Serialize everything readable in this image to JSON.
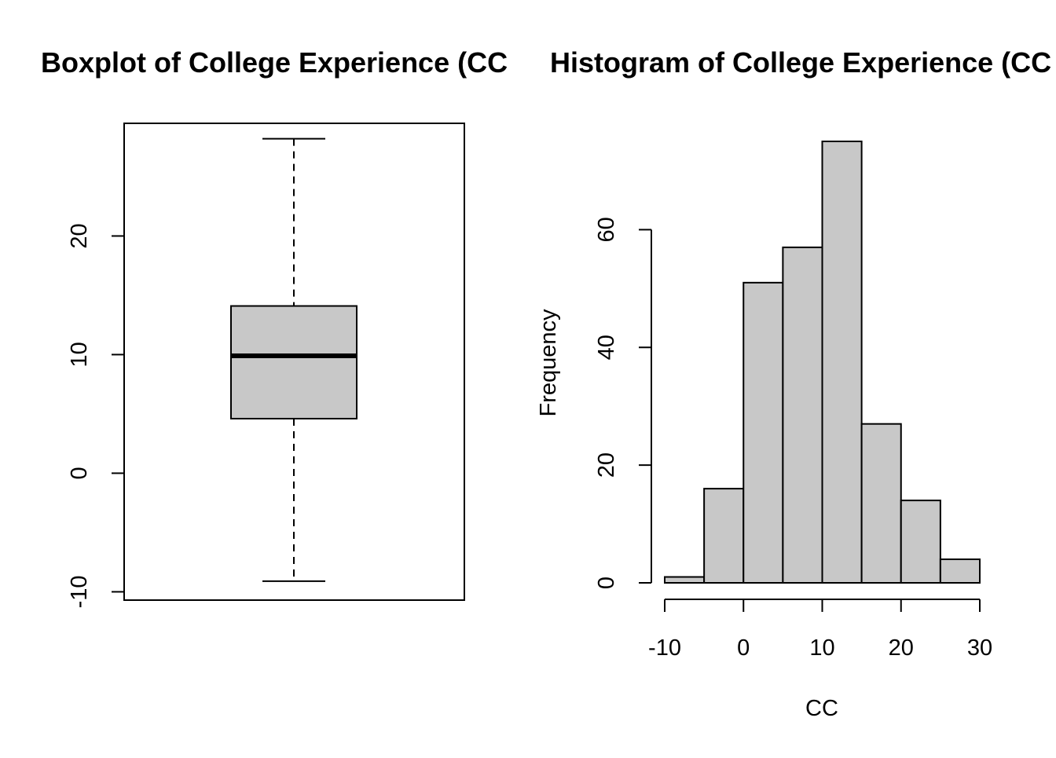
{
  "chart_data": [
    {
      "type": "box",
      "title": "Boxplot of College Experience (CC",
      "xlabel": "",
      "ylabel": "",
      "ylim": [
        -10.7,
        29.5
      ],
      "yticks": [
        -10,
        0,
        10,
        20
      ],
      "ytick_labels": [
        "-10",
        "0",
        "10",
        "20"
      ],
      "box": {
        "whisker_low": -9.1,
        "q1": 4.6,
        "median": 9.9,
        "q3": 14.1,
        "whisker_high": 28.2
      },
      "colors": {
        "box_fill": "#c8c8c8",
        "line": "#000000"
      }
    },
    {
      "type": "bar",
      "title": "Histogram of College Experience (CC",
      "xlabel": "CC",
      "ylabel": "Frequency",
      "bin_edges": [
        -10,
        -5,
        0,
        5,
        10,
        15,
        20,
        25,
        30
      ],
      "values": [
        1,
        16,
        51,
        57,
        75,
        27,
        14,
        4
      ],
      "xticks": [
        -10,
        0,
        10,
        20,
        30
      ],
      "xtick_labels": [
        "-10",
        "0",
        "10",
        "20",
        "30"
      ],
      "yticks": [
        0,
        20,
        40,
        60
      ],
      "ytick_labels": [
        "0",
        "20",
        "40",
        "60"
      ],
      "colors": {
        "bar_fill": "#c8c8c8",
        "line": "#000000"
      }
    }
  ]
}
